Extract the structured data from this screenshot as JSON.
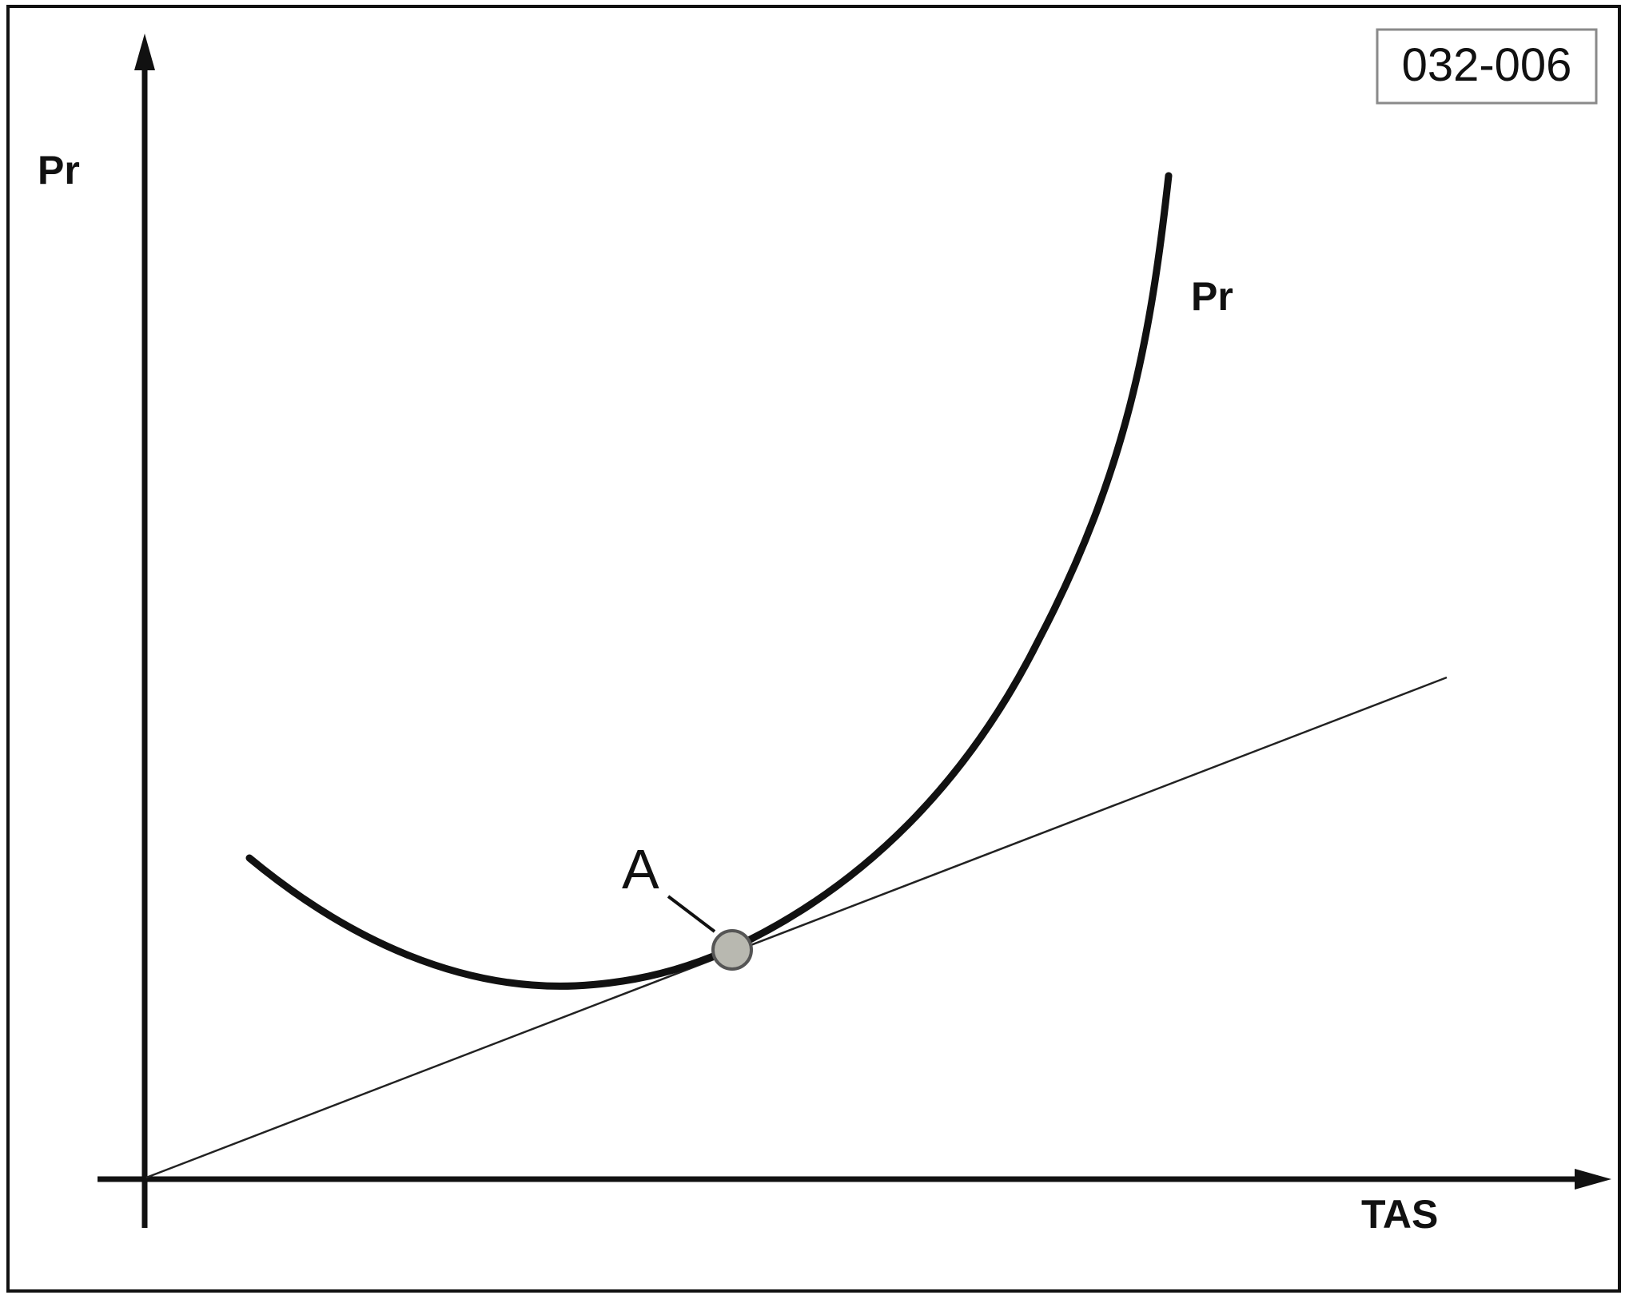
{
  "figure": {
    "code": "032-006",
    "y_axis_label": "Pr",
    "x_axis_label": "TAS",
    "curve_label": "Pr",
    "point_label": "A"
  },
  "colors": {
    "ink": "#111111",
    "point_fill": "#b8b8b0",
    "code_box_border": "#8a8a8a"
  },
  "description_marks": {
    "curve": "power-required U-shaped curve",
    "tangent": "straight line from origin tangent to curve at point A"
  }
}
